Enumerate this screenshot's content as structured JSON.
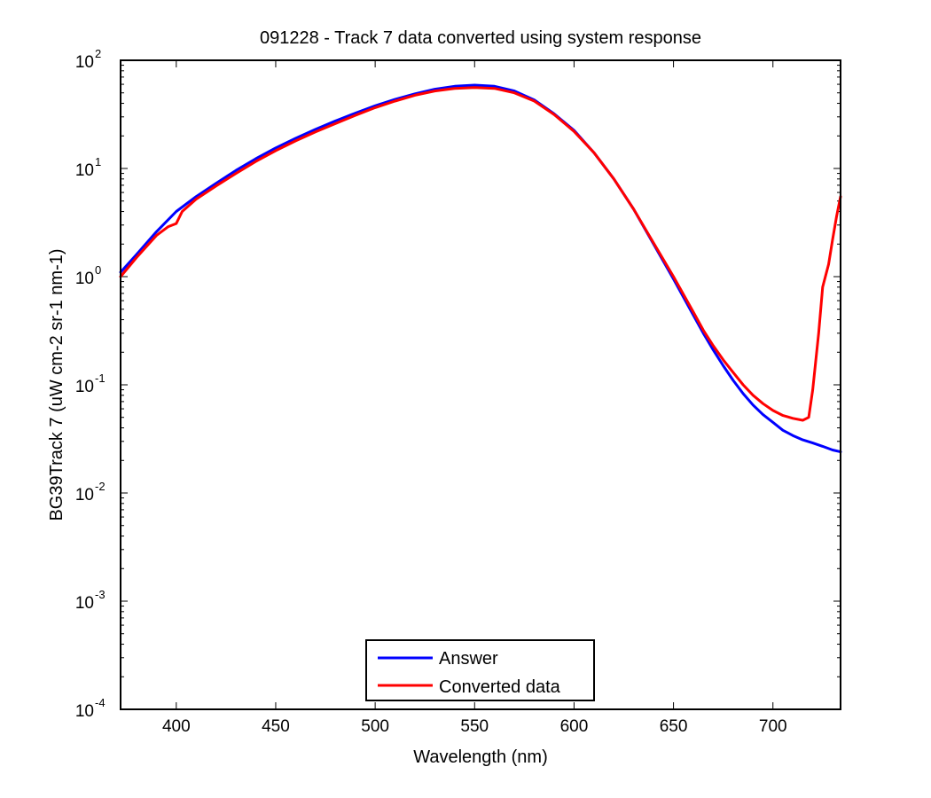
{
  "chart_data": {
    "type": "line",
    "title": "091228 - Track 7 data converted using system response",
    "xlabel": "Wavelength (nm)",
    "ylabel": "BG39Track 7 (uW cm-2 sr-1 nm-1)",
    "xlim": [
      372,
      734
    ],
    "ylim": [
      0.0001,
      100
    ],
    "yscale": "log",
    "grid": false,
    "legend_position": "bottom-center",
    "x_ticks": [
      "400",
      "450",
      "500",
      "550",
      "600",
      "650",
      "700"
    ],
    "x_tick_values": [
      400,
      450,
      500,
      550,
      600,
      650,
      700
    ],
    "y_ticks": [
      {
        "base": "10",
        "exp": "-4",
        "value": 0.0001
      },
      {
        "base": "10",
        "exp": "-3",
        "value": 0.001
      },
      {
        "base": "10",
        "exp": "-2",
        "value": 0.01
      },
      {
        "base": "10",
        "exp": "-1",
        "value": 0.1
      },
      {
        "base": "10",
        "exp": "0",
        "value": 1
      },
      {
        "base": "10",
        "exp": "1",
        "value": 10
      },
      {
        "base": "10",
        "exp": "2",
        "value": 100
      }
    ],
    "series": [
      {
        "name": "Answer",
        "color": "#0000ff",
        "x": [
          372,
          380,
          390,
          400,
          410,
          420,
          430,
          440,
          450,
          460,
          470,
          480,
          490,
          500,
          510,
          520,
          530,
          540,
          550,
          560,
          570,
          580,
          590,
          600,
          610,
          620,
          630,
          640,
          650,
          660,
          665,
          670,
          675,
          680,
          685,
          690,
          695,
          700,
          705,
          710,
          715,
          720,
          725,
          730,
          734
        ],
        "y": [
          1.1,
          1.6,
          2.6,
          4.0,
          5.5,
          7.3,
          9.6,
          12.3,
          15.5,
          19.0,
          23.0,
          27.5,
          32.5,
          38.0,
          43.5,
          49.0,
          54.0,
          57.5,
          59.0,
          57.5,
          52.0,
          43.0,
          32.0,
          22.5,
          14.0,
          8.0,
          4.2,
          2.0,
          0.95,
          0.44,
          0.3,
          0.21,
          0.15,
          0.11,
          0.083,
          0.065,
          0.053,
          0.045,
          0.038,
          0.034,
          0.031,
          0.029,
          0.027,
          0.025,
          0.024
        ]
      },
      {
        "name": "Converted data",
        "color": "#ff0000",
        "x": [
          372,
          380,
          390,
          396,
          400,
          403,
          410,
          420,
          430,
          440,
          450,
          460,
          470,
          480,
          490,
          500,
          510,
          520,
          530,
          540,
          550,
          560,
          570,
          580,
          590,
          600,
          610,
          620,
          630,
          640,
          650,
          660,
          665,
          670,
          675,
          680,
          685,
          690,
          695,
          700,
          705,
          710,
          715,
          718,
          720,
          723,
          725,
          728,
          730,
          732,
          734
        ],
        "y": [
          1.0,
          1.5,
          2.4,
          2.9,
          3.1,
          4.0,
          5.2,
          6.9,
          9.0,
          11.6,
          14.6,
          18.0,
          21.8,
          26.0,
          31.0,
          36.5,
          42.0,
          47.5,
          52.0,
          55.0,
          56.0,
          55.0,
          50.0,
          42.0,
          31.5,
          22.0,
          14.0,
          8.0,
          4.2,
          2.05,
          1.0,
          0.47,
          0.32,
          0.23,
          0.17,
          0.13,
          0.1,
          0.08,
          0.067,
          0.058,
          0.052,
          0.049,
          0.047,
          0.05,
          0.09,
          0.3,
          0.8,
          1.3,
          2.2,
          3.6,
          5.5
        ]
      }
    ]
  }
}
